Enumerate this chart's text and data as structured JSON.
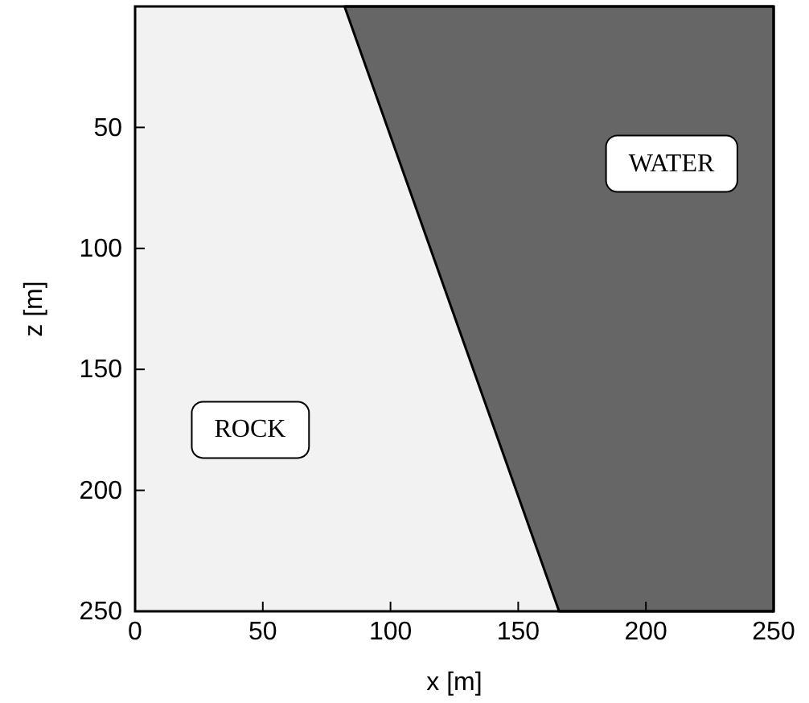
{
  "chart_data": {
    "type": "area",
    "xlabel": "x [m]",
    "ylabel": "z [m]",
    "xlim": [
      0,
      250
    ],
    "xticks": [
      0,
      50,
      100,
      150,
      200,
      250
    ],
    "ylim": [
      250,
      0
    ],
    "yticks": [
      50,
      100,
      150,
      200,
      250
    ],
    "series": [
      {
        "color": "#666666",
        "x": [
          82,
          166,
          250
        ],
        "values": [
          0,
          250,
          250
        ]
      }
    ],
    "annotations": [
      "ROCK",
      "WATER"
    ]
  }
}
